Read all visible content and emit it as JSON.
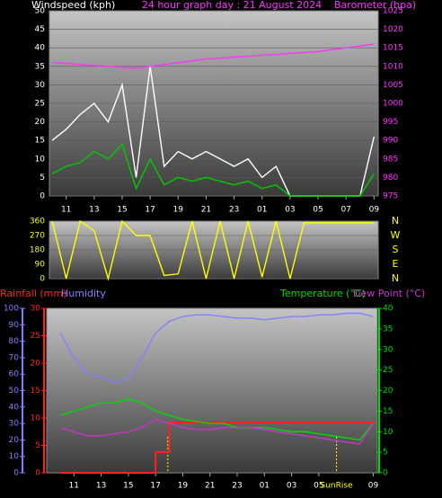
{
  "chart_data": [
    {
      "type": "line",
      "title": "24 hour graph day : 21 August 2024",
      "y_label": "Windspeed (kph)",
      "y2_label": "Barometer (hpa)",
      "x": [
        10,
        11,
        12,
        13,
        14,
        15,
        16,
        17,
        18,
        19,
        20,
        21,
        22,
        23,
        24,
        25,
        26,
        27,
        28,
        29,
        30,
        31,
        32,
        33
      ],
      "xlim": [
        9.8,
        33.3
      ],
      "xticks": [
        11,
        13,
        15,
        17,
        19,
        21,
        23,
        {
          "value": 25,
          "label": "01"
        },
        {
          "value": 27,
          "label": "03"
        },
        {
          "value": 29,
          "label": "05"
        },
        {
          "value": 31,
          "label": "07"
        },
        {
          "value": 33,
          "label": "09"
        }
      ],
      "ylim": [
        0,
        50
      ],
      "yticks": [
        0,
        5,
        10,
        15,
        20,
        25,
        30,
        35,
        40,
        45,
        50
      ],
      "y2lim": [
        975,
        1025
      ],
      "y2ticks": [
        975,
        980,
        985,
        990,
        995,
        1000,
        1005,
        1010,
        1015,
        1020,
        1025
      ],
      "grid": true,
      "series": [
        {
          "color": "#ffffff",
          "values": [
            15,
            18,
            22,
            25,
            20,
            30,
            5,
            35,
            8,
            12,
            10,
            12,
            10,
            8,
            10,
            5,
            8,
            0,
            0,
            0,
            0,
            0,
            0,
            16
          ]
        },
        {
          "color": "#00cc00",
          "values": [
            6,
            8,
            9,
            12,
            10,
            14,
            2,
            10,
            3,
            5,
            4,
            5,
            4,
            3,
            4,
            2,
            3,
            0,
            0,
            0,
            0,
            0,
            0,
            6
          ]
        },
        {
          "color": "#ff33ff",
          "axis": "y2",
          "values": [
            1011,
            1010.8,
            1010.5,
            1010.2,
            1010,
            1009.7,
            1009.5,
            1010,
            1010.5,
            1011,
            1011.5,
            1012,
            1012.2,
            1012.5,
            1012.7,
            1013,
            1013.2,
            1013.5,
            1013.7,
            1014,
            1014.5,
            1015,
            1015.5,
            1016
          ]
        }
      ]
    },
    {
      "type": "line",
      "x": [
        10,
        11,
        12,
        13,
        14,
        15,
        16,
        17,
        18,
        19,
        20,
        21,
        22,
        23,
        24,
        25,
        26,
        27,
        28,
        29,
        30,
        31,
        32,
        33
      ],
      "xlim": [
        9.8,
        33.3
      ],
      "ylim": [
        0,
        360
      ],
      "yticks": [
        0,
        90,
        180,
        270,
        360
      ],
      "y2lim": [
        0,
        360
      ],
      "y2ticks": [
        {
          "value": 360,
          "label": "N"
        },
        {
          "value": 270,
          "label": "W"
        },
        {
          "value": 180,
          "label": "S"
        },
        {
          "value": 90,
          "label": "E"
        },
        {
          "value": 0,
          "label": "N"
        }
      ],
      "grid": true,
      "series": [
        {
          "color": "#ffff00",
          "values": [
            360,
            0,
            360,
            300,
            0,
            360,
            270,
            270,
            20,
            30,
            360,
            0,
            360,
            0,
            360,
            10,
            360,
            0,
            350,
            350,
            350,
            350,
            350,
            350
          ]
        }
      ]
    },
    {
      "type": "line",
      "x": [
        10,
        11,
        12,
        13,
        14,
        15,
        16,
        17,
        18,
        19,
        20,
        21,
        22,
        23,
        24,
        25,
        26,
        27,
        28,
        29,
        30,
        31,
        32,
        33
      ],
      "xlim": [
        9,
        33.3
      ],
      "xticks": [
        11,
        13,
        15,
        17,
        19,
        21,
        23,
        {
          "value": 25,
          "label": "01"
        },
        {
          "value": 27,
          "label": "03"
        },
        {
          "value": 29,
          "label": "05"
        },
        {
          "value": 33,
          "label": "09"
        }
      ],
      "ylim": [
        0,
        30
      ],
      "yticks": [
        0,
        5,
        10,
        15,
        20,
        25,
        30
      ],
      "y2lim": [
        0,
        40
      ],
      "y2ticks": [
        0,
        5,
        10,
        15,
        20,
        25,
        30,
        35,
        40
      ],
      "y3lim": [
        0,
        100
      ],
      "y3ticks": [
        0,
        10,
        20,
        30,
        40,
        50,
        60,
        70,
        80,
        90,
        100
      ],
      "grid": false,
      "annotations": [
        {
          "x": 17.9
        },
        {
          "x": 30.3,
          "label": "SunRise"
        }
      ],
      "series": [
        {
          "name": "Rainfall (mm)",
          "color": "#ff2020",
          "step": true,
          "values": [
            0,
            0,
            0,
            0,
            0,
            0,
            0,
            3.8,
            9.2,
            9.2,
            9.2,
            9.2,
            9.2,
            9.2,
            9.2,
            9.2,
            9.2,
            9.2,
            9.2,
            9.2,
            9.2,
            9.2,
            9.2,
            9.2
          ]
        },
        {
          "name": "Humidity",
          "color": "#8080ff",
          "axis": "y3",
          "values": [
            85,
            70,
            60,
            58,
            55,
            57,
            70,
            85,
            92,
            95,
            96,
            96,
            95,
            94,
            94,
            93,
            94,
            95,
            95,
            96,
            96,
            97,
            97,
            95
          ]
        },
        {
          "name": "Temperature (°C)",
          "color": "#00dd00",
          "axis": "y2",
          "values": [
            14,
            15,
            16,
            17,
            17,
            18,
            17,
            15,
            14,
            13,
            12.5,
            12,
            12,
            11,
            11,
            11,
            10.5,
            10,
            10,
            9.5,
            9,
            8.5,
            8,
            12
          ]
        },
        {
          "name": "Dew Point (°C)",
          "color": "#cc33cc",
          "axis": "y2",
          "values": [
            11,
            10,
            9,
            9,
            9.5,
            10,
            11,
            13,
            12,
            11,
            10.5,
            10.5,
            11,
            11,
            11,
            10.5,
            10,
            9.5,
            9,
            8.5,
            8,
            7.5,
            7,
            12
          ]
        }
      ]
    }
  ]
}
